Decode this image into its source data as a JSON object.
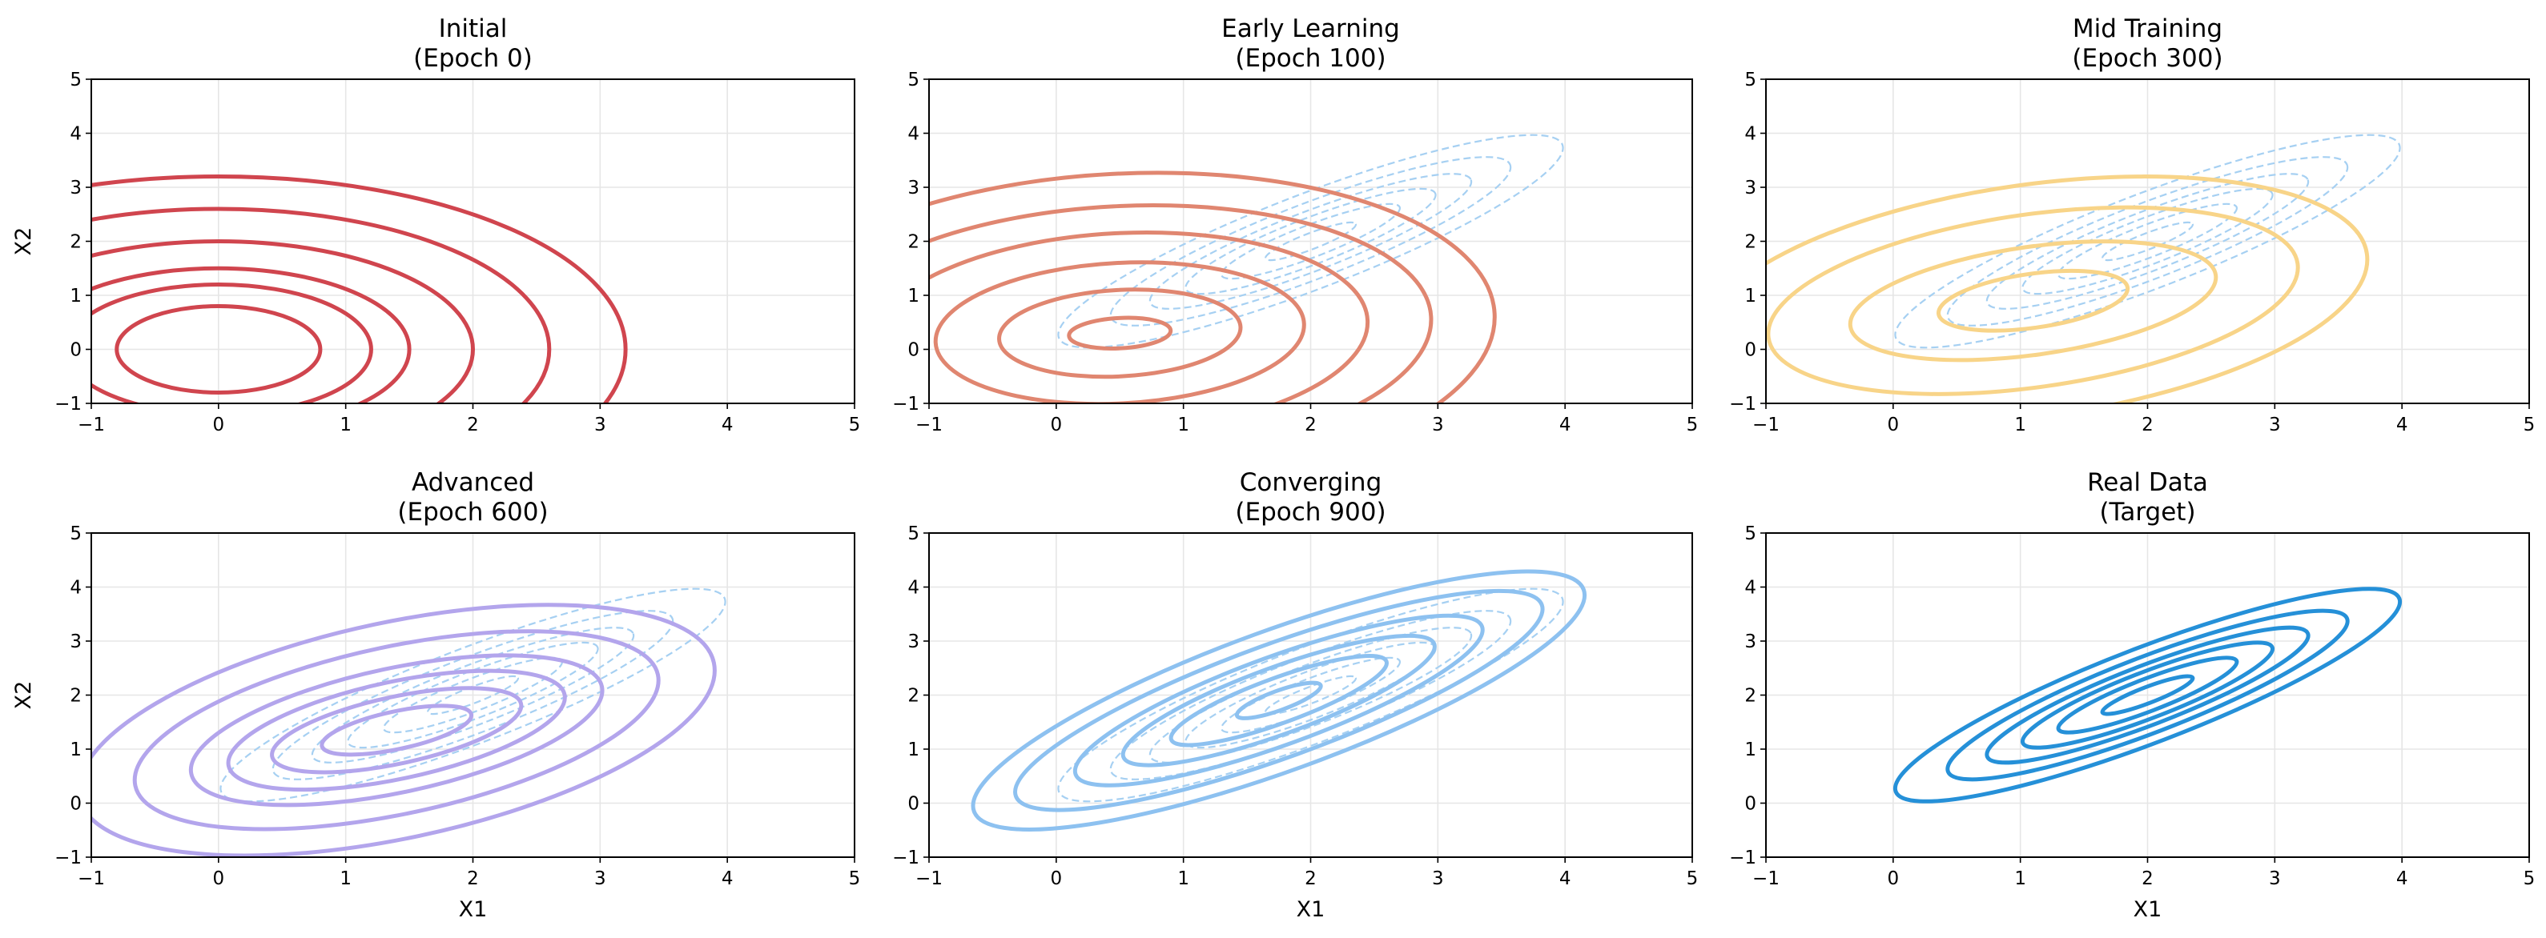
{
  "figure": {
    "target_color": "#2590d8",
    "panels_per_row": 3
  },
  "chart_data": [
    {
      "type": "contour",
      "title_line1": "Initial",
      "title_line2": "(Epoch 0)",
      "xlabel": "",
      "ylabel": "X2",
      "xlim": [
        -1,
        5
      ],
      "ylim": [
        -1,
        5
      ],
      "xticks": [
        "−1",
        "0",
        "1",
        "2",
        "3",
        "4",
        "5"
      ],
      "yticks": [
        "−1",
        "0",
        "1",
        "2",
        "3",
        "4",
        "5"
      ],
      "grid": true,
      "show_target": false,
      "model": {
        "color": "#d0454e",
        "center": [
          0,
          0
        ],
        "radii_x": [
          0.8,
          1.2,
          1.5,
          2.0,
          2.6,
          3.2
        ],
        "radii_y": [
          0.8,
          1.2,
          1.5,
          2.0,
          2.6,
          3.2
        ],
        "stretch_x": 1.0,
        "angle_deg": 0,
        "label_note": ""
      }
    },
    {
      "type": "contour",
      "title_line1": "Early Learning",
      "title_line2": "(Epoch 100)",
      "xlabel": "",
      "ylabel": "",
      "xlim": [
        -1,
        5
      ],
      "ylim": [
        -1,
        5
      ],
      "xticks": [
        "−1",
        "0",
        "1",
        "2",
        "3",
        "4",
        "5"
      ],
      "yticks": [
        "−1",
        "0",
        "1",
        "2",
        "3",
        "4",
        "5"
      ],
      "grid": true,
      "show_target": true,
      "model": {
        "color": "#e08670",
        "center": [
          0.5,
          0.3
        ],
        "rx": [
          0.4,
          0.95,
          1.45,
          1.95,
          2.45,
          2.95
        ],
        "ry": [
          0.28,
          0.8,
          1.3,
          1.85,
          2.35,
          2.95
        ],
        "angle_deg": 3
      }
    },
    {
      "type": "contour",
      "title_line1": "Mid Training",
      "title_line2": "(Epoch 300)",
      "xlabel": "",
      "ylabel": "",
      "xlim": [
        -1,
        5
      ],
      "ylim": [
        -1,
        5
      ],
      "xticks": [
        "−1",
        "0",
        "1",
        "2",
        "3",
        "4",
        "5"
      ],
      "yticks": [
        "−1",
        "0",
        "1",
        "2",
        "3",
        "4",
        "5"
      ],
      "grid": true,
      "show_target": true,
      "model": {
        "color": "#f8d488",
        "center": [
          1.1,
          0.9
        ],
        "rx": [
          0.75,
          1.45,
          2.1,
          2.65
        ],
        "ry": [
          0.5,
          1.0,
          1.6,
          2.15
        ],
        "angle_deg": 8
      }
    },
    {
      "type": "contour",
      "title_line1": "Advanced",
      "title_line2": "(Epoch 600)",
      "xlabel": "X1",
      "ylabel": "X2",
      "xlim": [
        -1,
        5
      ],
      "ylim": [
        -1,
        5
      ],
      "xticks": [
        "−1",
        "0",
        "1",
        "2",
        "3",
        "4",
        "5"
      ],
      "yticks": [
        "−1",
        "0",
        "1",
        "2",
        "3",
        "4",
        "5"
      ],
      "grid": true,
      "show_target": true,
      "model": {
        "color": "#b3a5ec",
        "center": [
          1.4,
          1.35
        ],
        "rx": [
          0.6,
          1.0,
          1.35,
          1.65,
          2.1,
          2.55
        ],
        "ry": [
          0.35,
          0.62,
          0.9,
          1.15,
          1.55,
          2.0
        ],
        "angle_deg": 12
      }
    },
    {
      "type": "contour",
      "title_line1": "Converging",
      "title_line2": "(Epoch 900)",
      "xlabel": "X1",
      "ylabel": "",
      "xlim": [
        -1,
        5
      ],
      "ylim": [
        -1,
        5
      ],
      "xticks": [
        "−1",
        "0",
        "1",
        "2",
        "3",
        "4",
        "5"
      ],
      "yticks": [
        "−1",
        "0",
        "1",
        "2",
        "3",
        "4",
        "5"
      ],
      "grid": true,
      "show_target": true,
      "model": {
        "color": "#8dc1f0",
        "center": [
          1.75,
          1.9
        ],
        "rx": [
          0.35,
          0.9,
          1.3,
          1.7,
          2.2,
          2.55
        ],
        "ry": [
          0.18,
          0.42,
          0.62,
          0.82,
          1.05,
          1.3
        ],
        "angle_deg": 20
      }
    },
    {
      "type": "contour",
      "title_line1": "Real Data",
      "title_line2": "(Target)",
      "xlabel": "X1",
      "ylabel": "",
      "xlim": [
        -1,
        5
      ],
      "ylim": [
        -1,
        5
      ],
      "xticks": [
        "−1",
        "0",
        "1",
        "2",
        "3",
        "4",
        "5"
      ],
      "yticks": [
        "−1",
        "0",
        "1",
        "2",
        "3",
        "4",
        "5"
      ],
      "grid": true,
      "show_target": false,
      "model": {
        "color": "#2590d8",
        "center": [
          2.0,
          2.0
        ],
        "rx": [
          0.38,
          0.75,
          1.05,
          1.35,
          1.68,
          2.12
        ],
        "ry": [
          0.15,
          0.3,
          0.43,
          0.55,
          0.7,
          0.88
        ],
        "angle_deg": 21
      }
    }
  ],
  "target_distribution": {
    "color": "#a6d0f2",
    "center": [
      2.0,
      2.0
    ],
    "rx": [
      0.38,
      0.75,
      1.05,
      1.35,
      1.68,
      2.12
    ],
    "ry": [
      0.15,
      0.3,
      0.43,
      0.55,
      0.7,
      0.88
    ],
    "angle_deg": 21
  }
}
